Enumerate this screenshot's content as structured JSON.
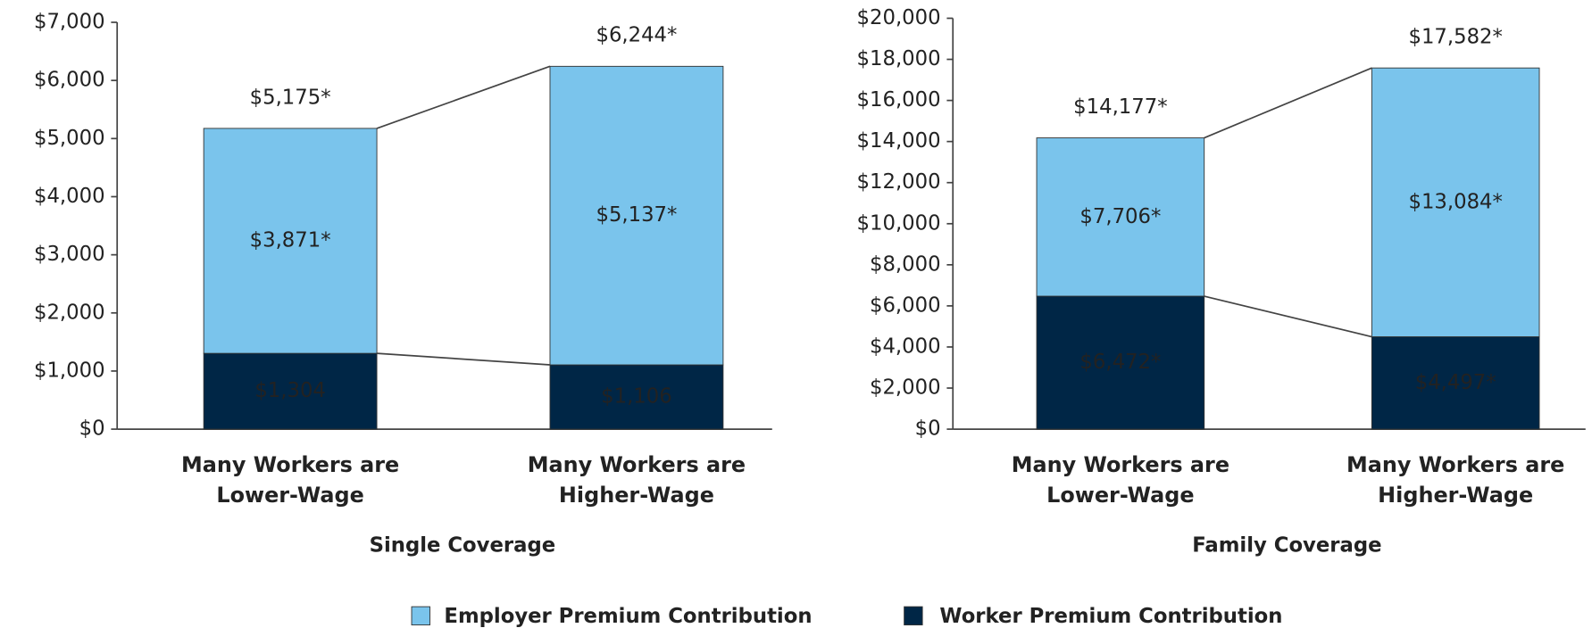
{
  "chart_data": [
    {
      "type": "bar",
      "stacked": true,
      "xlabel": "Single Coverage",
      "categories": [
        "Many Workers are Lower-Wage",
        "Many Workers are Higher-Wage"
      ],
      "series": [
        {
          "name": "Worker Premium Contribution",
          "color": "#002646",
          "values": [
            1304,
            1106
          ],
          "value_labels": [
            "$1,304",
            "$1,106"
          ]
        },
        {
          "name": "Employer Premium Contribution",
          "color": "#7ac4ec",
          "values": [
            3871,
            5137
          ],
          "value_labels": [
            "$3,871*",
            "$5,137*"
          ]
        }
      ],
      "totals": [
        5175,
        6244
      ],
      "total_labels": [
        "$5,175*",
        "$6,244*"
      ],
      "ylim": [
        0,
        7000
      ],
      "yticks": [
        {
          "value": 0,
          "label": "$0"
        },
        {
          "value": 1000,
          "label": "$1,000"
        },
        {
          "value": 2000,
          "label": "$2,000"
        },
        {
          "value": 3000,
          "label": "$3,000"
        },
        {
          "value": 4000,
          "label": "$4,000"
        },
        {
          "value": 5000,
          "label": "$5,000"
        },
        {
          "value": 6000,
          "label": "$6,000"
        },
        {
          "value": 7000,
          "label": "$7,000"
        }
      ]
    },
    {
      "type": "bar",
      "stacked": true,
      "xlabel": "Family Coverage",
      "categories": [
        "Many Workers are Lower-Wage",
        "Many Workers are Higher-Wage"
      ],
      "series": [
        {
          "name": "Worker Premium Contribution",
          "color": "#002646",
          "values": [
            6472,
            4497
          ],
          "value_labels": [
            "$6,472*",
            "$4,497*"
          ]
        },
        {
          "name": "Employer Premium Contribution",
          "color": "#7ac4ec",
          "values": [
            7706,
            13084
          ],
          "value_labels": [
            "$7,706*",
            "$13,084*"
          ]
        }
      ],
      "totals": [
        14177,
        17582
      ],
      "total_labels": [
        "$14,177*",
        "$17,582*"
      ],
      "ylim": [
        0,
        20000
      ],
      "yticks": [
        {
          "value": 0,
          "label": "$0"
        },
        {
          "value": 2000,
          "label": "$2,000"
        },
        {
          "value": 4000,
          "label": "$4,000"
        },
        {
          "value": 6000,
          "label": "$6,000"
        },
        {
          "value": 8000,
          "label": "$8,000"
        },
        {
          "value": 10000,
          "label": "$10,000"
        },
        {
          "value": 12000,
          "label": "$12,000"
        },
        {
          "value": 14000,
          "label": "$14,000"
        },
        {
          "value": 16000,
          "label": "$16,000"
        },
        {
          "value": 18000,
          "label": "$18,000"
        },
        {
          "value": 20000,
          "label": "$20,000"
        }
      ]
    }
  ]
}
